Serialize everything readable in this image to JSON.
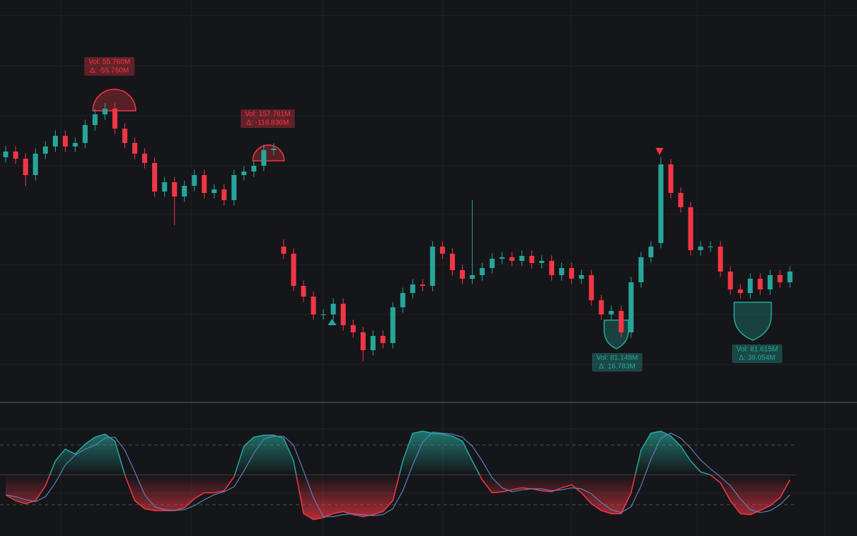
{
  "chart_data": [
    {
      "type": "candlestick",
      "up_color": "#26a69a",
      "down_color": "#f23645",
      "ylim": [
        0,
        112
      ],
      "open": [
        68,
        69.6,
        67.6,
        63,
        69,
        71,
        74,
        71,
        72,
        77,
        80,
        81.6,
        76,
        72,
        69,
        66.4,
        58.4,
        61,
        57,
        60,
        63,
        58,
        59,
        56,
        63,
        64,
        65.6,
        70,
        43,
        41,
        32,
        29,
        24,
        24,
        27,
        21,
        19,
        14,
        18,
        16,
        26,
        30,
        32.4,
        32,
        43,
        41,
        36.4,
        34,
        35,
        37,
        39.6,
        40,
        39,
        40.4,
        38.4,
        39,
        35,
        37,
        34,
        35,
        28,
        24,
        25,
        19,
        33,
        40,
        44,
        66,
        58,
        54,
        42,
        43,
        43,
        36,
        31,
        30,
        34,
        31,
        35,
        33
      ],
      "high": [
        71.1,
        71.1,
        69.1,
        70.5,
        72.5,
        75.5,
        75.5,
        73.5,
        78.5,
        81.5,
        83.1,
        83.1,
        77.5,
        73.5,
        70.5,
        67.9,
        62.5,
        62.5,
        61.5,
        64.5,
        64.5,
        60.5,
        60.5,
        64.5,
        65.5,
        67.1,
        71.5,
        71.9,
        45,
        42.5,
        33.5,
        30.5,
        25.5,
        28.5,
        28.5,
        22.5,
        20.5,
        19.5,
        19.5,
        27.5,
        31.5,
        33.9,
        33.9,
        44.5,
        44.5,
        42.5,
        37.9,
        56,
        38.5,
        41.1,
        41.5,
        41.5,
        41.9,
        41.9,
        40.5,
        40.5,
        38.5,
        38.5,
        36.5,
        36.5,
        29.5,
        26.5,
        26.5,
        34.5,
        41.5,
        44.5,
        68,
        67.5,
        59.5,
        55.5,
        44.5,
        44.5,
        44.5,
        37.5,
        32.5,
        35.5,
        35.5,
        36.5,
        36.5,
        37.5
      ],
      "low": [
        66.5,
        66.1,
        60,
        61.5,
        67.5,
        69.5,
        69.5,
        69.5,
        70.5,
        75.5,
        78.5,
        74.5,
        70.5,
        67.5,
        64.9,
        56.9,
        56.9,
        49,
        55.5,
        58.5,
        56.5,
        56.5,
        54.5,
        54.5,
        61.5,
        62.5,
        64.1,
        68.5,
        39.5,
        30.5,
        27.5,
        22.5,
        22.5,
        22.5,
        19.5,
        17.5,
        11,
        12.5,
        14.5,
        14.5,
        24.5,
        28.5,
        30.5,
        30.5,
        39.5,
        34.9,
        32.5,
        32.5,
        33.5,
        35.5,
        38.1,
        37.5,
        37.5,
        36.9,
        36.9,
        33.5,
        33.5,
        32.5,
        32.5,
        26.5,
        22.5,
        22.5,
        17.5,
        17.5,
        31.5,
        38.5,
        42.5,
        56.5,
        52.5,
        40.5,
        40.5,
        41.5,
        34.5,
        29.5,
        28.5,
        28.5,
        29.5,
        29.5,
        31.5,
        31.5
      ],
      "close": [
        69.6,
        67.6,
        63,
        69,
        71,
        74,
        71,
        72,
        77,
        80,
        81.6,
        76,
        72,
        69,
        66.4,
        58.4,
        61,
        57,
        60,
        63,
        58,
        59,
        56,
        63,
        64,
        65.6,
        70,
        70.4,
        41,
        32,
        29,
        24,
        24,
        27,
        21,
        19,
        14,
        18,
        16,
        26,
        30,
        32.4,
        32,
        43,
        41,
        36.4,
        34,
        35,
        37,
        39.6,
        40,
        39,
        40.4,
        38.4,
        39,
        35,
        37,
        34,
        35,
        28,
        24,
        25,
        19,
        33,
        40,
        43,
        66,
        58,
        54,
        42,
        43,
        43,
        36,
        31,
        30,
        34,
        31,
        35,
        33,
        36
      ],
      "annotations": [
        {
          "lines": [
            "Vol: 55.760M",
            "Δ: -55.760M"
          ],
          "color": "#f23645"
        },
        {
          "lines": [
            "Vol: 157.781M",
            "Δ: -116.836M"
          ],
          "color": "#f23645"
        },
        {
          "lines": [
            "Vol: 81.148M",
            "Δ: 16.783M"
          ],
          "color": "#26a69a"
        },
        {
          "lines": [
            "Vol: 81.615M",
            "Δ: 39.054M"
          ],
          "color": "#26a69a"
        }
      ]
    },
    {
      "type": "line",
      "ylim": [
        0,
        100
      ],
      "levels": [
        20,
        50,
        80
      ],
      "series": [
        {
          "color": "#26a69a",
          "down_color": "#f23645",
          "values": [
            30,
            24,
            21,
            24,
            39,
            64,
            76,
            71,
            81,
            88,
            91,
            84,
            50,
            24,
            16,
            14,
            14,
            14,
            17,
            26,
            32,
            32,
            34,
            48,
            79,
            88,
            90,
            90,
            87,
            64,
            11,
            5,
            7,
            11,
            13,
            10,
            8,
            10,
            13,
            24,
            64,
            92,
            94,
            92,
            91,
            89,
            84,
            64,
            45,
            32,
            33,
            35,
            37,
            36,
            34,
            33,
            37,
            40,
            32,
            21,
            14,
            11,
            11,
            32,
            75,
            92,
            94,
            89,
            79,
            64,
            53,
            50,
            42,
            24,
            11,
            10,
            14,
            19,
            27,
            45
          ]
        },
        {
          "color": "#5b7fb8",
          "values": [
            30,
            28,
            25,
            23,
            28,
            42,
            60,
            70,
            76,
            80,
            87,
            88,
            75,
            53,
            30,
            18,
            15,
            14,
            15,
            19,
            25,
            30,
            33,
            38,
            54,
            72,
            86,
            89,
            89,
            80,
            54,
            27,
            8,
            8,
            10,
            11,
            10,
            9,
            10,
            16,
            34,
            60,
            83,
            93,
            92,
            91,
            88,
            79,
            64,
            47,
            37,
            33,
            35,
            36,
            36,
            34,
            35,
            37,
            36,
            31,
            22,
            15,
            12,
            18,
            39,
            66,
            87,
            92,
            87,
            77,
            65,
            56,
            48,
            39,
            26,
            15,
            12,
            14,
            20,
            30
          ]
        }
      ]
    }
  ]
}
